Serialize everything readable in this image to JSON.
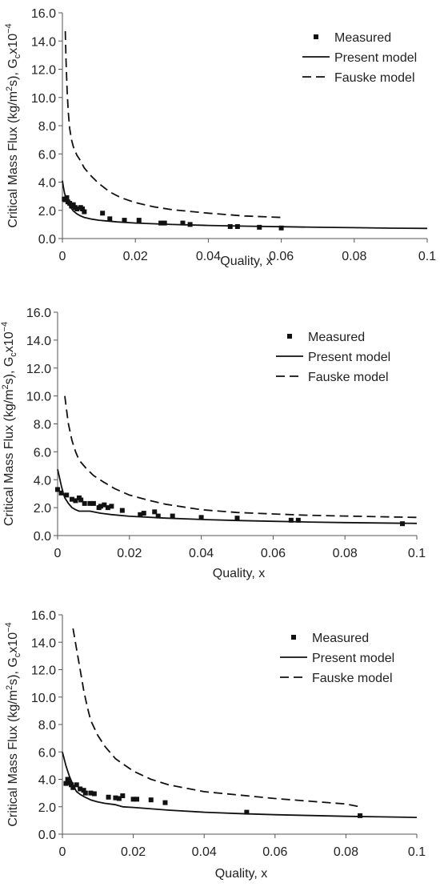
{
  "chart_data": [
    {
      "type": "scatter",
      "xlabel": "Quality, x",
      "ylabel_main": "Critical Mass Flux (kg/m",
      "ylabel_sup1": "2",
      "ylabel_mid": "s), G",
      "ylabel_sub": "c",
      "ylabel_end": "x10",
      "ylabel_sup2": "−4",
      "xlim": [
        0,
        0.1
      ],
      "ylim": [
        0,
        16
      ],
      "xticks": [
        "0",
        "0.02",
        "0.04",
        "0.06",
        "0.08",
        "0.1"
      ],
      "yticks": [
        "0.0",
        "2.0",
        "4.0",
        "6.0",
        "8.0",
        "10.0",
        "12.0",
        "14.0",
        "16.0"
      ],
      "legend_position": "top-right",
      "legend": [
        "Measured",
        "Present model",
        "Fauske model"
      ],
      "series": [
        {
          "name": "Measured",
          "style": "marker",
          "x": [
            0.0005,
            0.0008,
            0.0012,
            0.0015,
            0.002,
            0.0025,
            0.003,
            0.0035,
            0.004,
            0.005,
            0.0055,
            0.006,
            0.011,
            0.013,
            0.017,
            0.021,
            0.027,
            0.028,
            0.033,
            0.035,
            0.046,
            0.048,
            0.054,
            0.06
          ],
          "y": [
            2.8,
            2.75,
            2.9,
            2.6,
            2.5,
            2.3,
            2.4,
            2.2,
            2.1,
            2.2,
            2.1,
            1.9,
            1.8,
            1.4,
            1.3,
            1.3,
            1.1,
            1.1,
            1.1,
            1.0,
            0.85,
            0.85,
            0.8,
            0.75
          ]
        },
        {
          "name": "Present model",
          "style": "solid",
          "x": [
            0.0,
            0.0003,
            0.0006,
            0.001,
            0.0015,
            0.002,
            0.003,
            0.004,
            0.005,
            0.006,
            0.008,
            0.01,
            0.015,
            0.02,
            0.03,
            0.04,
            0.05,
            0.06,
            0.07,
            0.08,
            0.09,
            0.1
          ],
          "y": [
            4.1,
            3.6,
            3.2,
            2.9,
            2.6,
            2.3,
            1.95,
            1.75,
            1.6,
            1.5,
            1.38,
            1.3,
            1.18,
            1.1,
            1.0,
            0.93,
            0.88,
            0.84,
            0.8,
            0.77,
            0.74,
            0.72
          ]
        },
        {
          "name": "Fauske model",
          "style": "dashed",
          "x": [
            0.0008,
            0.001,
            0.0013,
            0.0016,
            0.002,
            0.0025,
            0.003,
            0.004,
            0.005,
            0.006,
            0.008,
            0.01,
            0.013,
            0.016,
            0.02,
            0.025,
            0.03,
            0.04,
            0.05,
            0.06
          ],
          "y": [
            14.7,
            12.5,
            10.5,
            9.0,
            7.8,
            7.0,
            6.5,
            5.9,
            5.5,
            5.0,
            4.4,
            3.9,
            3.3,
            2.9,
            2.55,
            2.25,
            2.05,
            1.8,
            1.6,
            1.5
          ]
        }
      ]
    },
    {
      "type": "scatter",
      "xlabel": "Quality, x",
      "ylabel_main": "Critical Mass Flux (kg/m",
      "ylabel_sup1": "2",
      "ylabel_mid": "s), G",
      "ylabel_sub": "c",
      "ylabel_end": "x10",
      "ylabel_sup2": "−4",
      "xlim": [
        0,
        0.1
      ],
      "ylim": [
        0,
        16
      ],
      "xticks": [
        "0",
        "0.02",
        "0.04",
        "0.06",
        "0.08",
        "0.1"
      ],
      "yticks": [
        "0.0",
        "2.0",
        "4.0",
        "6.0",
        "8.0",
        "10.0",
        "12.0",
        "14.0",
        "16.0"
      ],
      "legend_position": "top-right",
      "legend": [
        "Measured",
        "Present model",
        "Fauske model"
      ],
      "series": [
        {
          "name": "Measured",
          "style": "marker",
          "x": [
            0.0,
            0.001,
            0.0025,
            0.004,
            0.005,
            0.006,
            0.0065,
            0.0075,
            0.009,
            0.01,
            0.0115,
            0.012,
            0.013,
            0.014,
            0.015,
            0.018,
            0.023,
            0.024,
            0.027,
            0.028,
            0.032,
            0.04,
            0.05,
            0.065,
            0.067,
            0.096
          ],
          "y": [
            3.3,
            3.05,
            2.9,
            2.6,
            2.5,
            2.7,
            2.55,
            2.3,
            2.3,
            2.3,
            2.0,
            2.1,
            2.2,
            2.0,
            2.1,
            1.8,
            1.5,
            1.6,
            1.7,
            1.4,
            1.4,
            1.3,
            1.25,
            1.1,
            1.1,
            0.85
          ]
        },
        {
          "name": "Present model",
          "style": "solid",
          "x": [
            0.0,
            0.0005,
            0.001,
            0.0015,
            0.002,
            0.003,
            0.004,
            0.005,
            0.006,
            0.007,
            0.008,
            0.009,
            0.01,
            0.012,
            0.015,
            0.02,
            0.03,
            0.04,
            0.05,
            0.06,
            0.07,
            0.08,
            0.09,
            0.1
          ],
          "y": [
            4.75,
            4.2,
            3.6,
            3.1,
            2.7,
            2.3,
            2.0,
            1.85,
            1.75,
            1.75,
            1.75,
            1.75,
            1.7,
            1.6,
            1.5,
            1.38,
            1.25,
            1.15,
            1.08,
            1.02,
            0.97,
            0.93,
            0.9,
            0.87
          ]
        },
        {
          "name": "Fauske model",
          "style": "dashed",
          "x": [
            0.002,
            0.0025,
            0.003,
            0.004,
            0.005,
            0.006,
            0.008,
            0.01,
            0.013,
            0.016,
            0.02,
            0.025,
            0.03,
            0.04,
            0.05,
            0.06,
            0.07,
            0.08,
            0.09,
            0.1
          ],
          "y": [
            10.0,
            9.0,
            8.0,
            6.8,
            6.0,
            5.4,
            4.8,
            4.3,
            3.8,
            3.35,
            2.9,
            2.55,
            2.25,
            1.85,
            1.65,
            1.55,
            1.45,
            1.4,
            1.35,
            1.3
          ]
        }
      ]
    },
    {
      "type": "scatter",
      "xlabel": "Quality, x",
      "ylabel_main": "Critical Mass Flux (kg/m",
      "ylabel_sup1": "2",
      "ylabel_mid": "s), G",
      "ylabel_sub": "c",
      "ylabel_end": "x10",
      "ylabel_sup2": "−4",
      "xlim": [
        0,
        0.1
      ],
      "ylim": [
        0,
        16
      ],
      "xticks": [
        "0",
        "0.02",
        "0.04",
        "0.06",
        "0.08",
        "0.1"
      ],
      "yticks": [
        "0.0",
        "2.0",
        "4.0",
        "6.0",
        "8.0",
        "10.0",
        "12.0",
        "14.0",
        "16.0"
      ],
      "legend_position": "top-right",
      "legend": [
        "Measured",
        "Present model",
        "Fauske model"
      ],
      "series": [
        {
          "name": "Measured",
          "style": "marker",
          "x": [
            0.001,
            0.0015,
            0.002,
            0.0025,
            0.003,
            0.004,
            0.005,
            0.006,
            0.0065,
            0.008,
            0.009,
            0.013,
            0.015,
            0.016,
            0.017,
            0.02,
            0.021,
            0.025,
            0.029,
            0.052,
            0.084
          ],
          "y": [
            3.7,
            4.0,
            3.75,
            3.6,
            3.4,
            3.6,
            3.3,
            3.2,
            3.0,
            3.0,
            2.95,
            2.7,
            2.65,
            2.6,
            2.8,
            2.55,
            2.55,
            2.5,
            2.3,
            1.6,
            1.35
          ]
        },
        {
          "name": "Present model",
          "style": "solid",
          "x": [
            0.0,
            0.0005,
            0.001,
            0.0015,
            0.002,
            0.003,
            0.004,
            0.005,
            0.006,
            0.008,
            0.01,
            0.012,
            0.015,
            0.017,
            0.02,
            0.03,
            0.04,
            0.05,
            0.06,
            0.07,
            0.08,
            0.09,
            0.1
          ],
          "y": [
            6.0,
            5.5,
            5.0,
            4.6,
            4.2,
            3.6,
            3.1,
            2.9,
            2.75,
            2.5,
            2.35,
            2.25,
            2.15,
            2.0,
            1.95,
            1.75,
            1.6,
            1.5,
            1.42,
            1.36,
            1.3,
            1.26,
            1.22
          ]
        },
        {
          "name": "Fauske model",
          "style": "dashed",
          "x": [
            0.003,
            0.004,
            0.005,
            0.006,
            0.007,
            0.008,
            0.01,
            0.012,
            0.015,
            0.02,
            0.025,
            0.03,
            0.04,
            0.05,
            0.06,
            0.07,
            0.08,
            0.084
          ],
          "y": [
            15.0,
            13.5,
            12.0,
            10.5,
            9.3,
            8.3,
            7.2,
            6.4,
            5.5,
            4.6,
            4.0,
            3.6,
            3.1,
            2.85,
            2.6,
            2.4,
            2.2,
            2.0
          ]
        }
      ]
    }
  ]
}
